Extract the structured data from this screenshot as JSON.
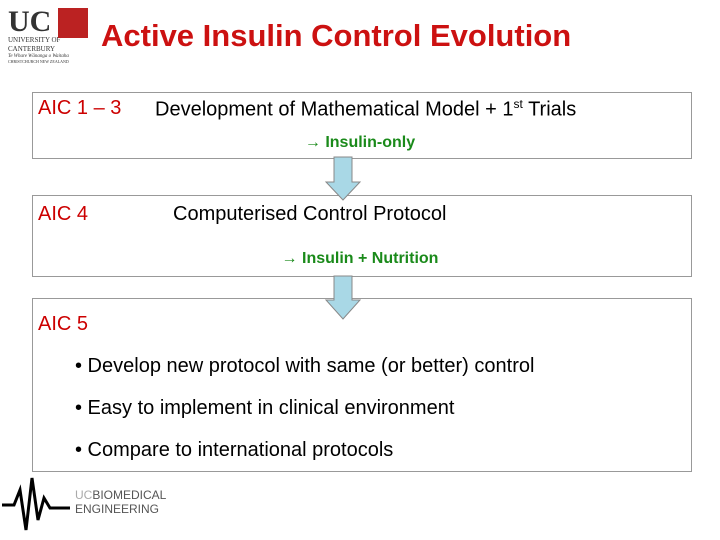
{
  "header": {
    "title": "Active Insulin Control Evolution",
    "logo": {
      "mark": "UC",
      "name": "UNIVERSITY OF CANTERBURY",
      "maori": "Te Whare Wānanga o Waitaha",
      "place": "CHRISTCHURCH NEW ZEALAND"
    }
  },
  "boxes": [
    {
      "label": "AIC 1 – 3",
      "text": "Development of Mathematical Model + 1",
      "sup": "st",
      "tail": "Trials",
      "note": "→ Insulin-only"
    },
    {
      "label": "AIC 4",
      "text": "Computerised Control Protocol",
      "note": "→ Insulin + Nutrition"
    },
    {
      "label": "AIC 5",
      "bullets": [
        "• Develop new protocol with same (or better) control",
        "• Easy to implement in clinical environment",
        "• Compare to international protocols"
      ]
    }
  ],
  "footer": {
    "mark": "UC",
    "line1": "BIOMEDICAL",
    "line2": "ENGINEERING"
  }
}
